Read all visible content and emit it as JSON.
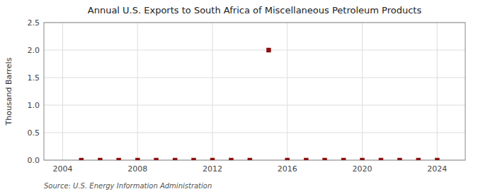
{
  "chart_data": {
    "type": "scatter",
    "title": "Annual U.S. Exports to South Africa of Miscellaneous Petroleum Products",
    "ylabel": "Thousand Barrels",
    "source": "Source: U.S. Energy Information Administration",
    "x": [
      2005,
      2006,
      2007,
      2008,
      2009,
      2010,
      2011,
      2012,
      2013,
      2014,
      2015,
      2016,
      2017,
      2018,
      2019,
      2020,
      2021,
      2022,
      2023,
      2024
    ],
    "values": [
      0.0,
      0.0,
      0.0,
      0.0,
      0.0,
      0.0,
      0.0,
      0.0,
      0.0,
      0.0,
      2.0,
      0.0,
      0.0,
      0.0,
      0.0,
      0.0,
      0.0,
      0.0,
      0.0,
      0.0
    ],
    "color": "#8B1010",
    "marker": "square",
    "xlim": [
      2003.0,
      2025.5
    ],
    "ylim": [
      0,
      2.5
    ],
    "xticks": [
      2004,
      2008,
      2012,
      2016,
      2020,
      2024
    ],
    "yticks": [
      {
        "value": 0.0,
        "label": "0.0"
      },
      0.5,
      {
        "value": 1.0,
        "label": "1.0"
      },
      1.5,
      {
        "value": 2.0,
        "label": "2.0"
      },
      2.5
    ],
    "grid": true
  }
}
